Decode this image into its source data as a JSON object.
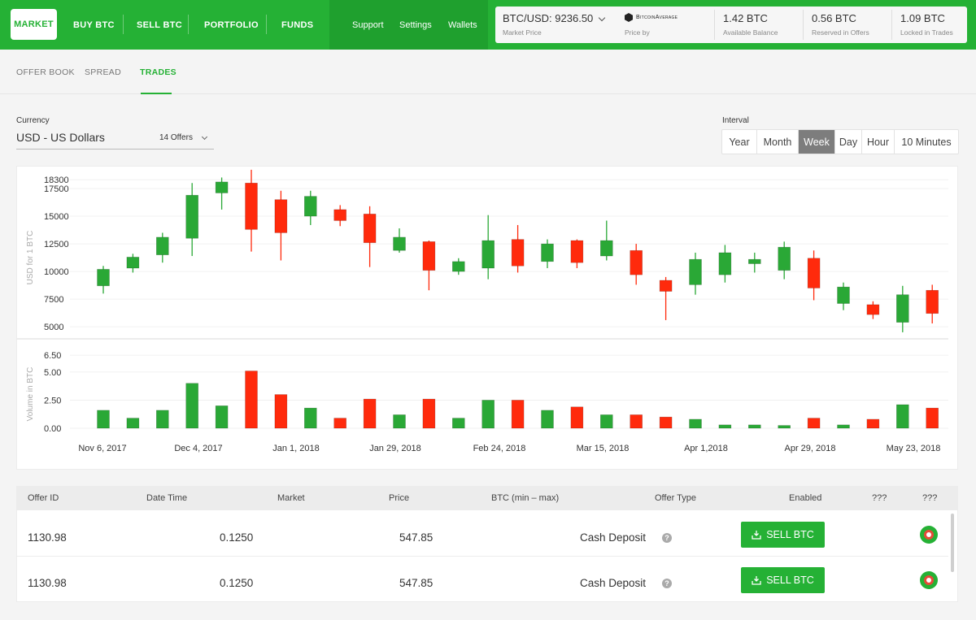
{
  "nav": {
    "tabs": [
      {
        "label": "MARKET"
      },
      {
        "label": "BUY BTC"
      },
      {
        "label": "SELL BTC"
      },
      {
        "label": "PORTFOLIO"
      },
      {
        "label": "FUNDS"
      }
    ],
    "links": [
      {
        "label": "Support"
      },
      {
        "label": "Settings"
      },
      {
        "label": "Wallets"
      }
    ]
  },
  "stats": {
    "market_price": {
      "value": "BTC/USD: 9236.50",
      "label": "Market Price"
    },
    "price_by": {
      "label": "Price by",
      "logo_text": "BitcoinAverage"
    },
    "available": {
      "value": "1.42 BTC",
      "label": "Available Balance"
    },
    "reserved": {
      "value": "0.56 BTC",
      "label": "Reserved in Offers"
    },
    "locked": {
      "value": "1.09 BTC",
      "label": "Locked in Trades"
    }
  },
  "subtabs": [
    {
      "label": "OFFER BOOK"
    },
    {
      "label": "SPREAD"
    },
    {
      "label": "TRADES"
    }
  ],
  "currency": {
    "label": "Currency",
    "value": "USD - US Dollars",
    "offers": "14 Offers"
  },
  "interval": {
    "label": "Interval",
    "options": [
      "Year",
      "Month",
      "Week",
      "Day",
      "Hour",
      "10 Minutes"
    ],
    "selected": "Week"
  },
  "colors": {
    "up": "#2aa836",
    "down": "#ff2a0c",
    "brand": "#25b135"
  },
  "chart_data": [
    {
      "type": "candlestick",
      "ylabel": "USD for 1 BTC",
      "yticks": [
        18300,
        17500,
        15000,
        12500,
        10000,
        7500,
        5000
      ],
      "ylim": [
        4200,
        18900
      ],
      "grid": true,
      "candles": [
        {
          "open": 8700,
          "close": 10200,
          "low": 8000,
          "high": 10500
        },
        {
          "open": 10300,
          "close": 11300,
          "low": 9900,
          "high": 11600
        },
        {
          "open": 11500,
          "close": 13100,
          "low": 10800,
          "high": 13500
        },
        {
          "open": 13000,
          "close": 16900,
          "low": 11400,
          "high": 18000
        },
        {
          "open": 17100,
          "close": 18100,
          "low": 15600,
          "high": 18500
        },
        {
          "open": 18000,
          "close": 13800,
          "low": 11800,
          "high": 19200
        },
        {
          "open": 16500,
          "close": 13500,
          "low": 11000,
          "high": 17300
        },
        {
          "open": 15000,
          "close": 16800,
          "low": 14200,
          "high": 17300
        },
        {
          "open": 15600,
          "close": 14600,
          "low": 14100,
          "high": 16000
        },
        {
          "open": 15200,
          "close": 12600,
          "low": 10400,
          "high": 15900
        },
        {
          "open": 11900,
          "close": 13100,
          "low": 11700,
          "high": 13900
        },
        {
          "open": 12700,
          "close": 10100,
          "low": 8300,
          "high": 12800
        },
        {
          "open": 10000,
          "close": 10900,
          "low": 9700,
          "high": 11200
        },
        {
          "open": 10300,
          "close": 12800,
          "low": 9300,
          "high": 15100
        },
        {
          "open": 12900,
          "close": 10500,
          "low": 9900,
          "high": 14200
        },
        {
          "open": 10900,
          "close": 12500,
          "low": 10300,
          "high": 12900
        },
        {
          "open": 12800,
          "close": 10800,
          "low": 10300,
          "high": 12900
        },
        {
          "open": 11400,
          "close": 12800,
          "low": 11000,
          "high": 14600
        },
        {
          "open": 11900,
          "close": 9700,
          "low": 8800,
          "high": 12500
        },
        {
          "open": 9200,
          "close": 8200,
          "low": 5600,
          "high": 9500
        },
        {
          "open": 8800,
          "close": 11100,
          "low": 7900,
          "high": 11700
        },
        {
          "open": 9700,
          "close": 11700,
          "low": 9000,
          "high": 12400
        },
        {
          "open": 10700,
          "close": 11100,
          "low": 9900,
          "high": 11700
        },
        {
          "open": 10100,
          "close": 12200,
          "low": 9300,
          "high": 12700
        },
        {
          "open": 11200,
          "close": 8500,
          "low": 7400,
          "high": 11900
        },
        {
          "open": 7100,
          "close": 8600,
          "low": 6500,
          "high": 9000
        },
        {
          "open": 7000,
          "close": 6100,
          "low": 5700,
          "high": 7300
        },
        {
          "open": 5400,
          "close": 7900,
          "low": 4500,
          "high": 8700
        },
        {
          "open": 8300,
          "close": 6200,
          "low": 5300,
          "high": 8800
        }
      ]
    },
    {
      "type": "bar",
      "ylabel": "Volume in BTC",
      "yticks": [
        "6.50",
        "5.00",
        "2.50",
        "0.00"
      ],
      "ylim": [
        0,
        6.8
      ],
      "x_labels": [
        "Nov 6, 2017",
        "Dec 4, 2017",
        "Jan 1, 2018",
        "Jan 29, 2018",
        "Feb 24, 2018",
        "Mar 15, 2018",
        "Apr 1,2018",
        "Apr 29, 2018",
        "May 23, 2018"
      ],
      "values": [
        1.6,
        0.9,
        1.6,
        4.0,
        2.0,
        5.1,
        3.0,
        1.8,
        0.9,
        2.6,
        1.2,
        2.6,
        0.9,
        2.5,
        2.5,
        1.6,
        1.9,
        1.2,
        1.2,
        1.0,
        0.8,
        0.3,
        0.3,
        0.25,
        0.9,
        0.3,
        0.8,
        2.1,
        1.8
      ],
      "directions": [
        "up",
        "up",
        "up",
        "up",
        "up",
        "down",
        "down",
        "up",
        "down",
        "down",
        "up",
        "down",
        "up",
        "up",
        "down",
        "up",
        "down",
        "up",
        "down",
        "down",
        "up",
        "up",
        "up",
        "up",
        "down",
        "up",
        "down",
        "up",
        "down"
      ]
    }
  ],
  "table": {
    "headers": [
      "Offer ID",
      "Date Time",
      "Market",
      "Price",
      "BTC (min – max)",
      "Offer Type",
      "Enabled",
      "???",
      "???"
    ],
    "rows": [
      {
        "offer_id": "1130.98",
        "date": "0.1250",
        "price": "547.85",
        "type": "Cash Deposit",
        "action": "SELL BTC"
      },
      {
        "offer_id": "1130.98",
        "date": "0.1250",
        "price": "547.85",
        "type": "Cash Deposit",
        "action": "SELL BTC"
      }
    ]
  }
}
